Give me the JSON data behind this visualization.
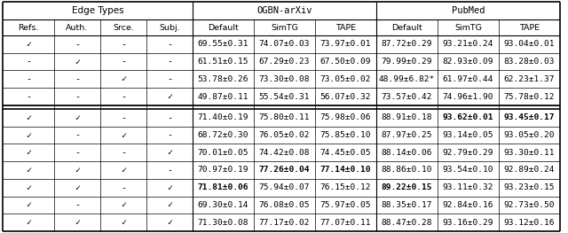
{
  "col_headers_top": [
    "Edge Types",
    "OGBN-arXiv",
    "PubMed"
  ],
  "col_headers_sub": [
    "Refs.",
    "Auth.",
    "Srce.",
    "Subj.",
    "Default",
    "SimTG",
    "TAPE",
    "Default",
    "SimTG",
    "TAPE"
  ],
  "rows": [
    {
      "checks": [
        true,
        false,
        false,
        false
      ],
      "ogbn": [
        "69.55±0.31",
        "74.07±0.03",
        "73.97±0.01"
      ],
      "pubmed": [
        "87.72±0.29",
        "93.21±0.24",
        "93.04±0.01"
      ],
      "bold": []
    },
    {
      "checks": [
        false,
        true,
        false,
        false
      ],
      "ogbn": [
        "61.51±0.15",
        "67.29±0.23",
        "67.50±0.09"
      ],
      "pubmed": [
        "79.99±0.29",
        "82.93±0.09",
        "83.28±0.03"
      ],
      "bold": []
    },
    {
      "checks": [
        false,
        false,
        true,
        false
      ],
      "ogbn": [
        "53.78±0.26",
        "73.30±0.08",
        "73.05±0.02"
      ],
      "pubmed": [
        "48.99±6.82*",
        "61.97±0.44",
        "62.23±1.37"
      ],
      "bold": []
    },
    {
      "checks": [
        false,
        false,
        false,
        true
      ],
      "ogbn": [
        "49.87±0.11",
        "55.54±0.31",
        "56.07±0.32"
      ],
      "pubmed": [
        "73.57±0.42",
        "74.96±1.90",
        "75.78±0.12"
      ],
      "bold": []
    },
    {
      "checks": [
        true,
        true,
        false,
        false
      ],
      "ogbn": [
        "71.40±0.19",
        "75.80±0.11",
        "75.98±0.06"
      ],
      "pubmed": [
        "88.91±0.18",
        "93.62±0.01",
        "93.45±0.17"
      ],
      "bold": [
        "pubmed_1",
        "pubmed_2"
      ]
    },
    {
      "checks": [
        true,
        false,
        true,
        false
      ],
      "ogbn": [
        "68.72±0.30",
        "76.05±0.02",
        "75.85±0.10"
      ],
      "pubmed": [
        "87.97±0.25",
        "93.14±0.05",
        "93.05±0.20"
      ],
      "bold": []
    },
    {
      "checks": [
        true,
        false,
        false,
        true
      ],
      "ogbn": [
        "70.01±0.05",
        "74.42±0.08",
        "74.45±0.05"
      ],
      "pubmed": [
        "88.14±0.06",
        "92.79±0.29",
        "93.30±0.11"
      ],
      "bold": []
    },
    {
      "checks": [
        true,
        true,
        true,
        false
      ],
      "ogbn": [
        "70.97±0.19",
        "77.26±0.04",
        "77.14±0.10"
      ],
      "pubmed": [
        "88.86±0.10",
        "93.54±0.10",
        "92.89±0.24"
      ],
      "bold": [
        "ogbn_1",
        "ogbn_2"
      ]
    },
    {
      "checks": [
        true,
        true,
        false,
        true
      ],
      "ogbn": [
        "71.81±0.06",
        "75.94±0.07",
        "76.15±0.12"
      ],
      "pubmed": [
        "89.22±0.15",
        "93.11±0.32",
        "93.23±0.15"
      ],
      "bold": [
        "ogbn_0",
        "pubmed_0"
      ]
    },
    {
      "checks": [
        true,
        false,
        true,
        true
      ],
      "ogbn": [
        "69.30±0.14",
        "76.08±0.05",
        "75.97±0.05"
      ],
      "pubmed": [
        "88.35±0.17",
        "92.84±0.16",
        "92.73±0.50"
      ],
      "bold": []
    },
    {
      "checks": [
        true,
        true,
        true,
        true
      ],
      "ogbn": [
        "71.30±0.08",
        "77.17±0.02",
        "77.07±0.11"
      ],
      "pubmed": [
        "88.47±0.28",
        "93.16±0.29",
        "93.12±0.16"
      ],
      "bold": []
    }
  ],
  "separator_after_row": 3,
  "font_size": 6.8,
  "header_font_size": 7.5,
  "mono_font": "DejaVu Sans Mono",
  "sans_font": "DejaVu Sans"
}
